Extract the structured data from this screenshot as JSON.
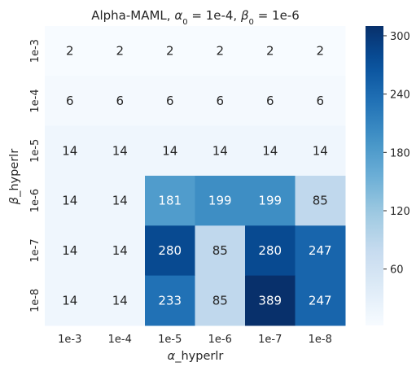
{
  "chart_data": {
    "type": "heatmap",
    "title": {
      "prefix": "Alpha-MAML, ",
      "alpha_symbol": "α",
      "alpha_sub": "0",
      "alpha_value": " = 1e-4, ",
      "beta_symbol": "β",
      "beta_sub": "0",
      "beta_value": " = 1e-6"
    },
    "xlabel": {
      "symbol": "α",
      "text": "_hyperlr"
    },
    "ylabel": {
      "symbol": "β",
      "text": "_hyperlr"
    },
    "x_categories": [
      "1e-3",
      "1e-4",
      "1e-5",
      "1e-6",
      "1e-7",
      "1e-8"
    ],
    "y_categories": [
      "1e-3",
      "1e-4",
      "1e-5",
      "1e-6",
      "1e-7",
      "1e-8"
    ],
    "values": [
      [
        2,
        2,
        2,
        2,
        2,
        2
      ],
      [
        6,
        6,
        6,
        6,
        6,
        6
      ],
      [
        14,
        14,
        14,
        14,
        14,
        14
      ],
      [
        14,
        14,
        181,
        199,
        199,
        85
      ],
      [
        14,
        14,
        280,
        85,
        280,
        247
      ],
      [
        14,
        14,
        233,
        85,
        389,
        247
      ]
    ],
    "colormap": "Blues",
    "color_range": [
      2,
      310
    ],
    "colorbar_ticks": [
      60,
      120,
      180,
      240,
      300
    ]
  }
}
